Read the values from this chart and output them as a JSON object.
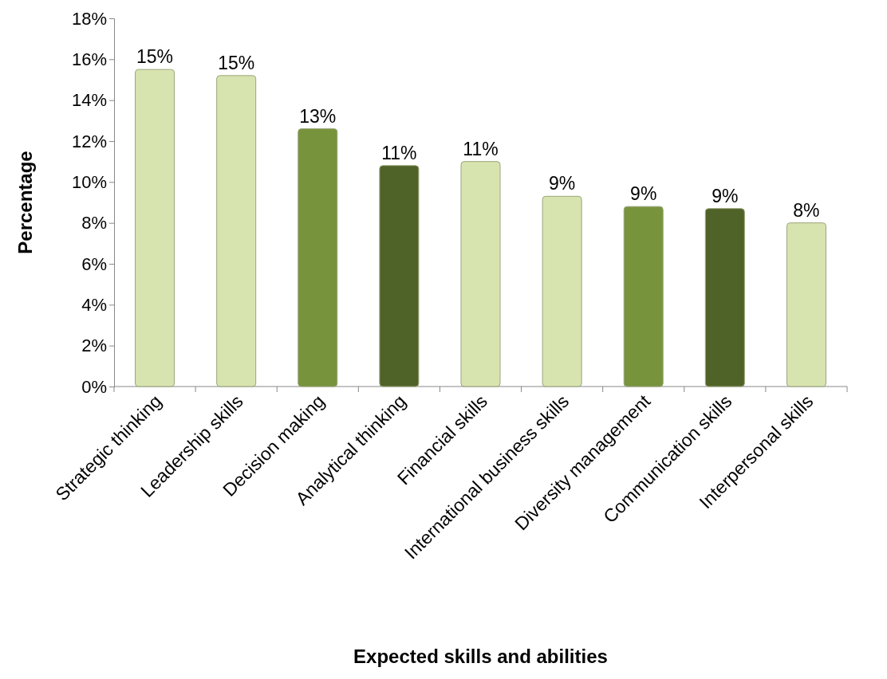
{
  "chart_data": {
    "type": "bar",
    "xlabel": "Expected skills and abilities",
    "ylabel": "Percentage",
    "categories": [
      "Strategic thinking",
      "Leadership skills",
      "Decision making",
      "Analytical thinking",
      "Financial skills",
      "International business skills",
      "Diversity management",
      "Communication skills",
      "Interpersonal skills"
    ],
    "values": [
      15.5,
      15.2,
      12.6,
      10.8,
      11.0,
      9.3,
      8.8,
      8.7,
      8.0
    ],
    "colors": [
      "#d7e4b0",
      "#d7e4b0",
      "#77933c",
      "#4f6228",
      "#d7e4b0",
      "#d7e4b0",
      "#77933c",
      "#4f6228",
      "#d7e4b0"
    ],
    "value_labels": [
      "15%",
      "15%",
      "13%",
      "11%",
      "11%",
      "9%",
      "9%",
      "9%",
      "8%"
    ],
    "ylim": [
      0,
      18
    ],
    "yticks": [
      {
        "value": 0,
        "label": "0%"
      },
      {
        "value": 2,
        "label": "2%"
      },
      {
        "value": 4,
        "label": "4%"
      },
      {
        "value": 6,
        "label": "6%"
      },
      {
        "value": 8,
        "label": "8%"
      },
      {
        "value": 10,
        "label": "10%"
      },
      {
        "value": 12,
        "label": "12%"
      },
      {
        "value": 14,
        "label": "14%"
      },
      {
        "value": 16,
        "label": "16%"
      },
      {
        "value": 18,
        "label": "18%"
      }
    ],
    "grid": false
  }
}
